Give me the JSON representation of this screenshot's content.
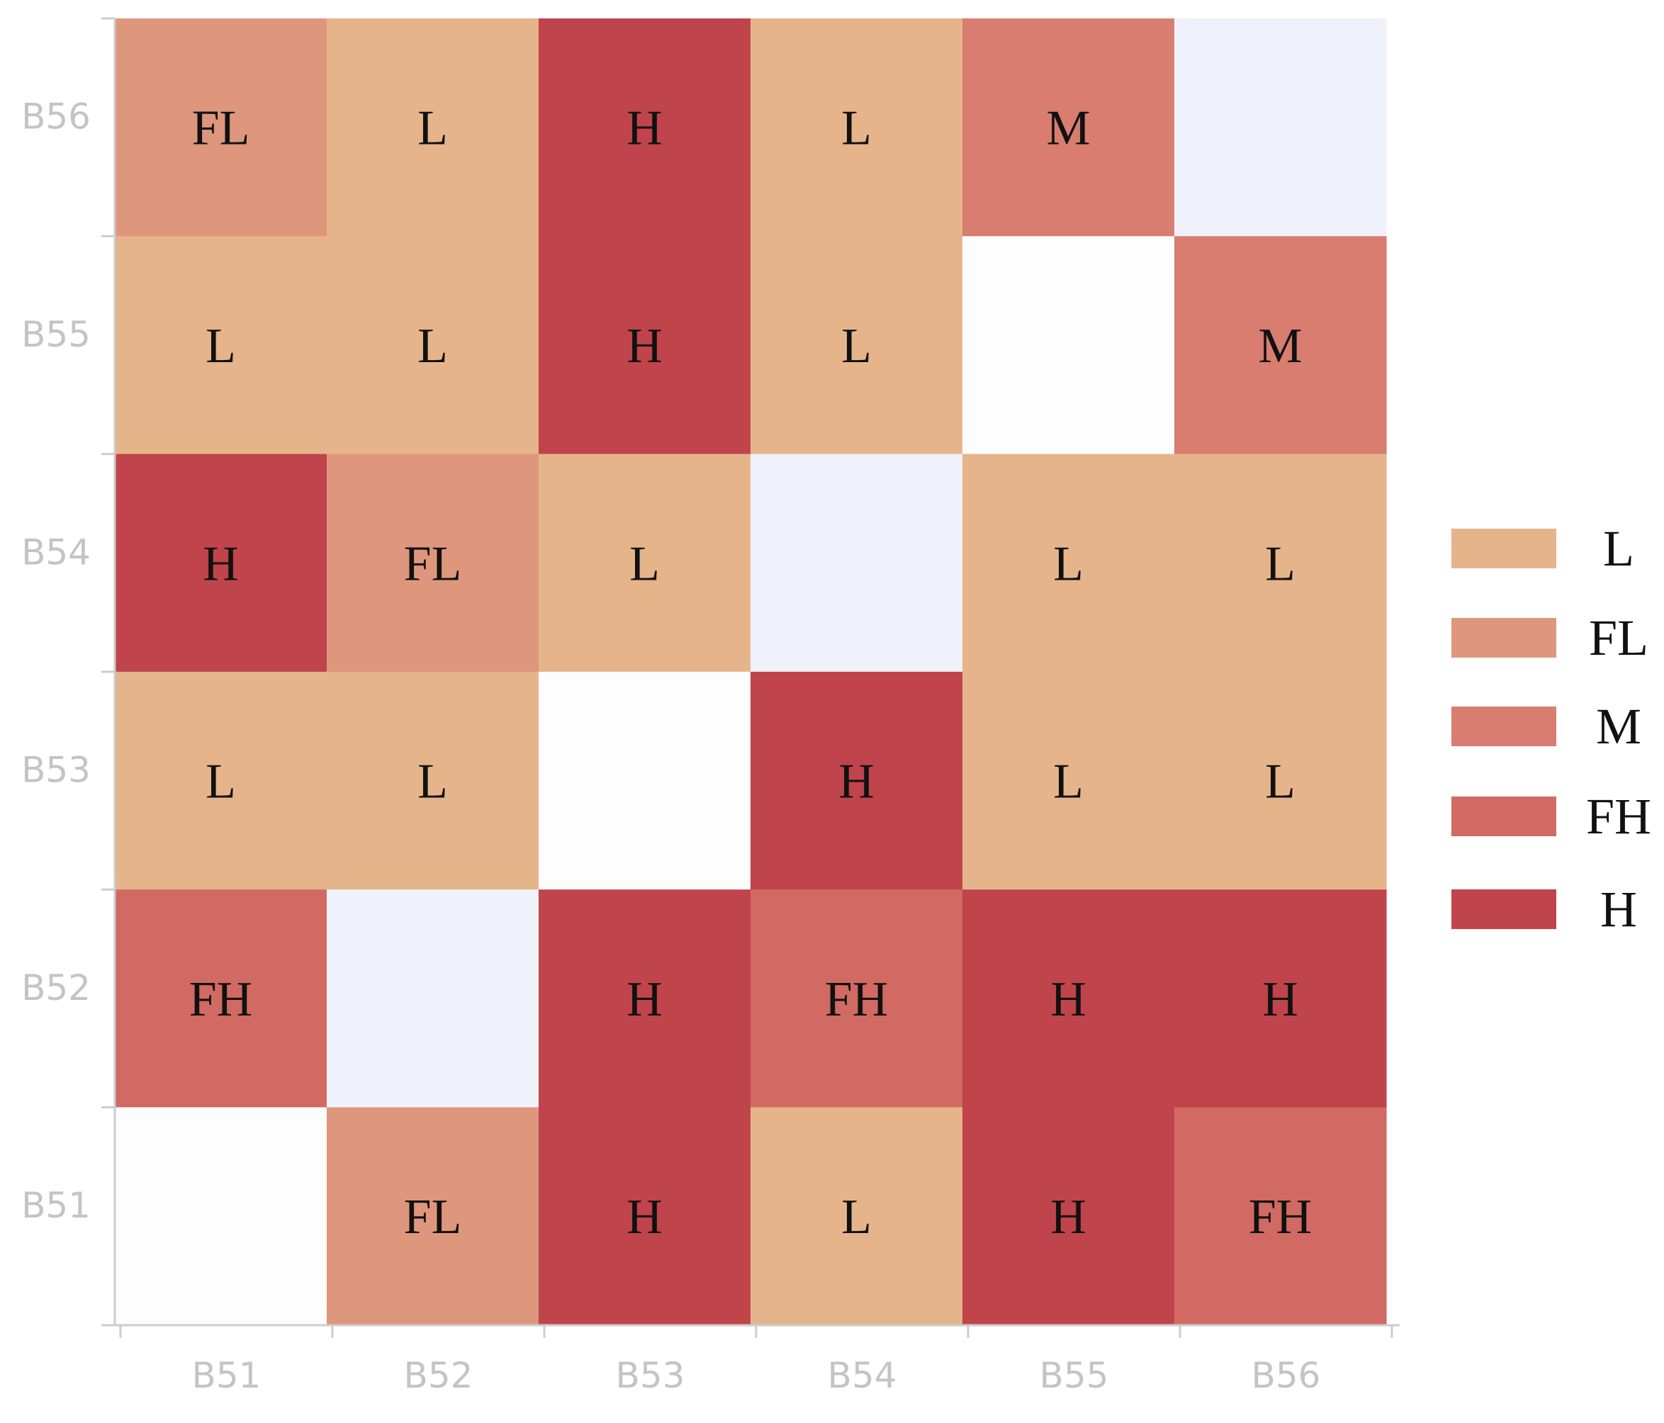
{
  "chart_data": {
    "type": "heatmap",
    "title": "",
    "xlabel": "",
    "ylabel": "",
    "x_categories": [
      "B51",
      "B52",
      "B53",
      "B54",
      "B55",
      "B56"
    ],
    "y_categories": [
      "B51",
      "B52",
      "B53",
      "B54",
      "B55",
      "B56"
    ],
    "levels": [
      "L",
      "FL",
      "M",
      "FH",
      "H"
    ],
    "level_colors": {
      "L": "#e6b48a",
      "FL": "#de977c",
      "M": "#d87d70",
      "FH": "#d06a62",
      "H": "#c0444b"
    },
    "empty_colors": [
      "#fdfdfd",
      "#eff2fb"
    ],
    "diagonal_empty_color_index": [
      0,
      1,
      0,
      1,
      0,
      1
    ],
    "rows": [
      {
        "y": "B56",
        "cells": [
          "FL",
          "L",
          "H",
          "L",
          "M",
          null
        ]
      },
      {
        "y": "B55",
        "cells": [
          "L",
          "L",
          "H",
          "L",
          null,
          "M"
        ]
      },
      {
        "y": "B54",
        "cells": [
          "H",
          "FL",
          "L",
          null,
          "L",
          "L"
        ]
      },
      {
        "y": "B53",
        "cells": [
          "L",
          "L",
          null,
          "H",
          "L",
          "L"
        ]
      },
      {
        "y": "B52",
        "cells": [
          "FH",
          null,
          "H",
          "FH",
          "H",
          "H"
        ]
      },
      {
        "y": "B51",
        "cells": [
          null,
          "FL",
          "H",
          "L",
          "H",
          "FH"
        ]
      }
    ],
    "legend": {
      "position": "right",
      "entries": [
        "L",
        "FL",
        "M",
        "FH",
        "H"
      ]
    },
    "grid": false
  }
}
